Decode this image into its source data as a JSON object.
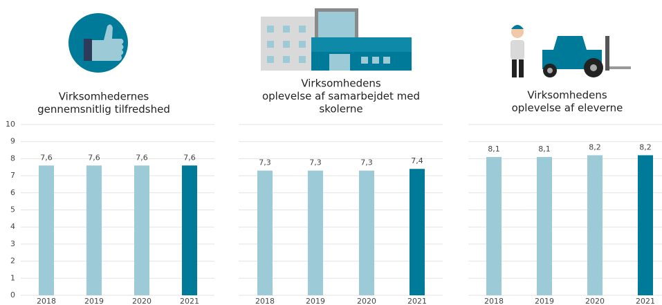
{
  "chart_data": [
    {
      "type": "bar",
      "title": [
        "Virksomhedernes",
        "gennemsnitlig tilfredshed"
      ],
      "categories": [
        "2018",
        "2019",
        "2020",
        "2021"
      ],
      "values": [
        7.6,
        7.6,
        7.6,
        7.6
      ],
      "value_labels": [
        "7,6",
        "7,6",
        "7,6",
        "7,6"
      ],
      "colors": [
        "#9ccad7",
        "#9ccad7",
        "#9ccad7",
        "#007a99"
      ],
      "ylim": [
        0,
        10
      ],
      "yticks": [
        0,
        1,
        2,
        3,
        4,
        5,
        6,
        7,
        8,
        9,
        10
      ],
      "show_tick_labels": true,
      "grid": true
    },
    {
      "type": "bar",
      "title": [
        "Virksomhedens",
        "oplevelse af samarbejdet med",
        "skolerne"
      ],
      "categories": [
        "2018",
        "2019",
        "2020",
        "2021"
      ],
      "values": [
        7.3,
        7.3,
        7.3,
        7.4
      ],
      "value_labels": [
        "7,3",
        "7,3",
        "7,3",
        "7,4"
      ],
      "colors": [
        "#9ccad7",
        "#9ccad7",
        "#9ccad7",
        "#007a99"
      ],
      "ylim": [
        0,
        10
      ],
      "yticks": [
        0,
        1,
        2,
        3,
        4,
        5,
        6,
        7,
        8,
        9,
        10
      ],
      "show_tick_labels": false,
      "grid": true
    },
    {
      "type": "bar",
      "title": [
        "Virksomhedens",
        "oplevelse af eleverne"
      ],
      "categories": [
        "2018",
        "2019",
        "2020",
        "2021"
      ],
      "values": [
        8.1,
        8.1,
        8.2,
        8.2
      ],
      "value_labels": [
        "8,1",
        "8,1",
        "8,2",
        "8,2"
      ],
      "colors": [
        "#9ccad7",
        "#9ccad7",
        "#9ccad7",
        "#007a99"
      ],
      "ylim": [
        0,
        10
      ],
      "yticks": [
        0,
        1,
        2,
        3,
        4,
        5,
        6,
        7,
        8,
        9,
        10
      ],
      "show_tick_labels": false,
      "grid": true
    }
  ]
}
